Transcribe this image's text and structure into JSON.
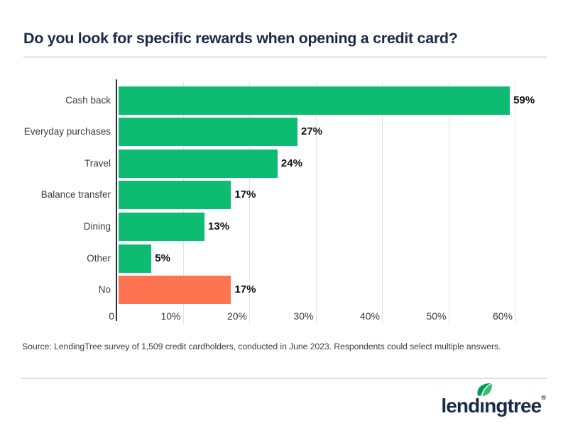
{
  "title": "Do you look for specific rewards when opening a credit card?",
  "source": "Source: LendingTree survey of 1,509 credit cardholders, conducted in June 2023. Respondents could select multiple answers.",
  "brand": {
    "logo_text": "lendingtree",
    "logo_text_parts": {
      "before_i": "lend",
      "i_char": "ı",
      "after_i": "ngtree"
    },
    "registered_mark": "®",
    "navy": "#1b2a47",
    "leaf_green_dark": "#009e58",
    "leaf_green_light": "#35c071"
  },
  "chart_data": {
    "type": "bar",
    "orientation": "horizontal",
    "title": "Do you look for specific rewards when opening a credit card?",
    "categories": [
      "Cash back",
      "Everyday purchases",
      "Travel",
      "Balance transfer",
      "Dining",
      "Other",
      "No"
    ],
    "values": [
      59,
      27,
      24,
      17,
      13,
      5,
      17
    ],
    "value_labels": [
      "59%",
      "27%",
      "24%",
      "17%",
      "13%",
      "5%",
      "17%"
    ],
    "bar_colors": [
      "#0dbc72",
      "#0dbc72",
      "#0dbc72",
      "#0dbc72",
      "#0dbc72",
      "#0dbc72",
      "#ff7450"
    ],
    "series_note": "green = specific reward sought, orange = No",
    "x_ticks": [
      "0",
      "10%",
      "20%",
      "30%",
      "40%",
      "50%",
      "60%"
    ],
    "x_tick_values": [
      0,
      10,
      20,
      30,
      40,
      50,
      60
    ],
    "xlim": [
      0,
      65
    ],
    "grid": true,
    "legend": null,
    "colors": {
      "positive": "#0dbc72",
      "negative": "#ff7450",
      "grid": "#e3e3e3",
      "axis": "#2e2e2e"
    }
  }
}
